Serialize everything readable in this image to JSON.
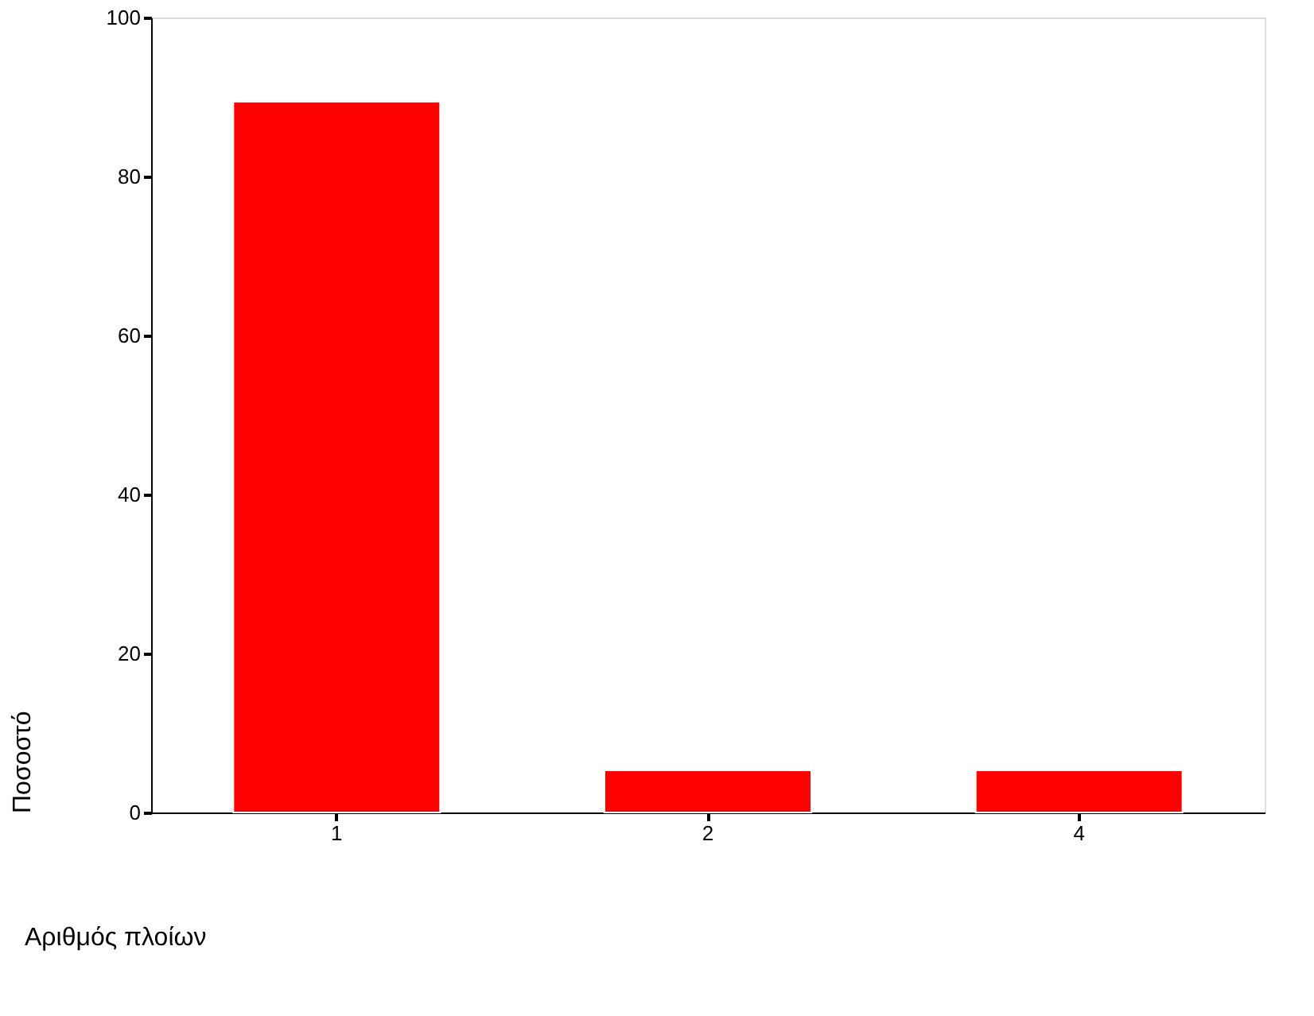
{
  "chart_data": {
    "type": "bar",
    "categories": [
      "1",
      "2",
      "4"
    ],
    "values": [
      89.4,
      5.3,
      5.3
    ],
    "color": "#ff0000",
    "xlabel": "Αριθμός πλοίων",
    "ylabel": "Ποσοστό",
    "ylim": [
      0,
      100
    ],
    "yticks": [
      0,
      20,
      40,
      60,
      80,
      100
    ],
    "grid": false
  }
}
